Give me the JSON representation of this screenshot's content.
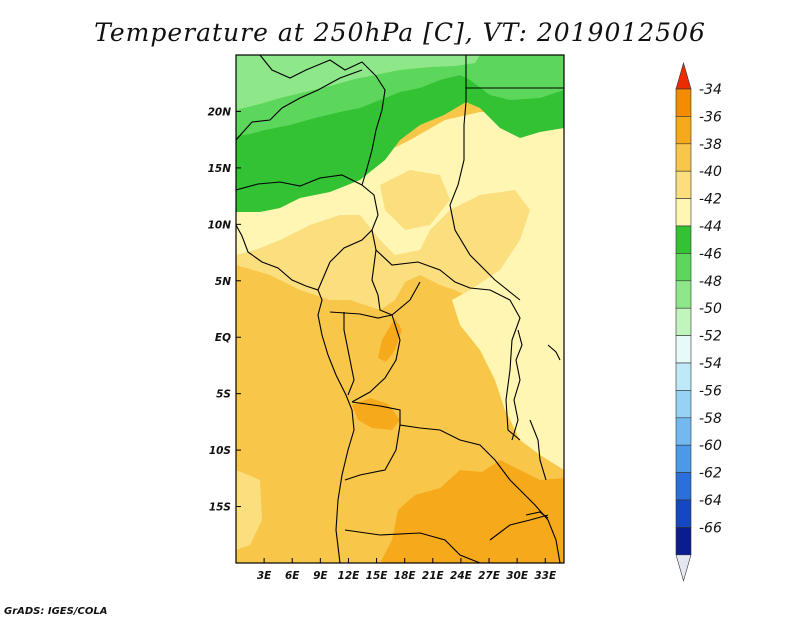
{
  "title": "Temperature at 250hPa [C], VT: 2019012506",
  "credit": "GrADS: IGES/COLA",
  "map": {
    "lon_range": [
      0,
      35
    ],
    "lat_range": [
      -20,
      25
    ],
    "x_ticks": [
      "3E",
      "6E",
      "9E",
      "12E",
      "15E",
      "18E",
      "21E",
      "24E",
      "27E",
      "30E",
      "33E"
    ],
    "x_tick_values": [
      3,
      6,
      9,
      12,
      15,
      18,
      21,
      24,
      27,
      30,
      33
    ],
    "y_ticks": [
      "20N",
      "15N",
      "10N",
      "5N",
      "EQ",
      "5S",
      "10S",
      "15S"
    ],
    "y_tick_values": [
      20,
      15,
      10,
      5,
      0,
      -5,
      -10,
      -15
    ]
  },
  "colorbar": {
    "labels": [
      "-34",
      "-36",
      "-38",
      "-40",
      "-42",
      "-44",
      "-46",
      "-48",
      "-50",
      "-52",
      "-54",
      "-56",
      "-58",
      "-60",
      "-62",
      "-64",
      "-66"
    ],
    "colors": [
      "#f05a00",
      "#f58b00",
      "#f7a91c",
      "#f8c74a",
      "#fbde7e",
      "#fff6b4",
      "#33c233",
      "#5cd75c",
      "#8ee88a",
      "#c2f5bd",
      "#e6fbf9",
      "#bfe9f8",
      "#96d2f4",
      "#73b9f0",
      "#4c99ea",
      "#2a6fdb",
      "#1447c1",
      "#0a1c8f"
    ],
    "top_arrow_color": "#ea2d00",
    "bottom_arrow_color": "#e4e6f2"
  }
}
